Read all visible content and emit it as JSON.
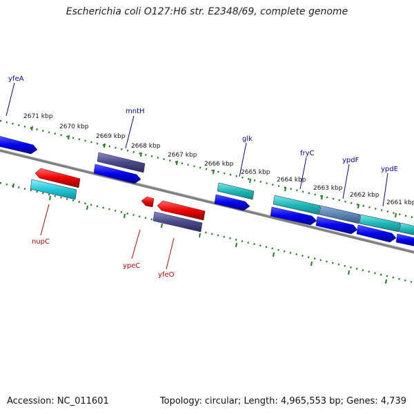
{
  "header": {
    "title": "Escherichia coli O127:H6 str. E2348/69, complete genome"
  },
  "footer": {
    "accession": "Accession: NC_011601",
    "summary": "Topology: circular; Length: 4,965,553 bp; Genes: 4,739"
  },
  "map": {
    "ticks": [
      "2671 kbp",
      "2670 kbp",
      "2669 kbp",
      "2668 kbp",
      "2667 kbp",
      "2666 kbp",
      "2665 kbp",
      "2664 kbp",
      "2663 kbp",
      "2662 kbp",
      "2661 kbp"
    ],
    "genes_top": [
      "yfeA",
      "mntH",
      "glk",
      "fryC",
      "ypdF",
      "ypdE"
    ],
    "genes_bottom": [
      "nupC",
      "ypeC",
      "yfeO"
    ],
    "colors": {
      "forward_cds": "#0000ee",
      "reverse_cds": "#ee0000",
      "cog_dark": "#4a4a8a",
      "cog_cyan": "#22c8d8",
      "cog_teal": "#20b8b8",
      "cog_slate": "#5a84b4",
      "top_label": "#0000aa",
      "bottom_label": "#cc0000",
      "ruler": "#1f7a1f",
      "backbone": "#808080"
    }
  }
}
